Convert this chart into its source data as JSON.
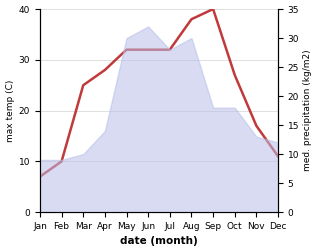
{
  "months": [
    "Jan",
    "Feb",
    "Mar",
    "Apr",
    "May",
    "Jun",
    "Jul",
    "Aug",
    "Sep",
    "Oct",
    "Nov",
    "Dec"
  ],
  "temperature": [
    7,
    10,
    25,
    28,
    32,
    32,
    32,
    38,
    40,
    27,
    17,
    11
  ],
  "precipitation": [
    9,
    9,
    10,
    14,
    30,
    32,
    28,
    30,
    18,
    18,
    13,
    12
  ],
  "temp_color": "#c0393b",
  "precip_fill_color": "#b8bfe8",
  "precip_fill_alpha": 0.55,
  "temp_ylim": [
    0,
    40
  ],
  "precip_ylim": [
    0,
    35
  ],
  "temp_yticks": [
    0,
    10,
    20,
    30,
    40
  ],
  "precip_yticks": [
    0,
    5,
    10,
    15,
    20,
    25,
    30,
    35
  ],
  "xlabel": "date (month)",
  "ylabel_left": "max temp (C)",
  "ylabel_right": "med. precipitation (kg/m2)",
  "figsize": [
    3.18,
    2.52
  ],
  "dpi": 100
}
